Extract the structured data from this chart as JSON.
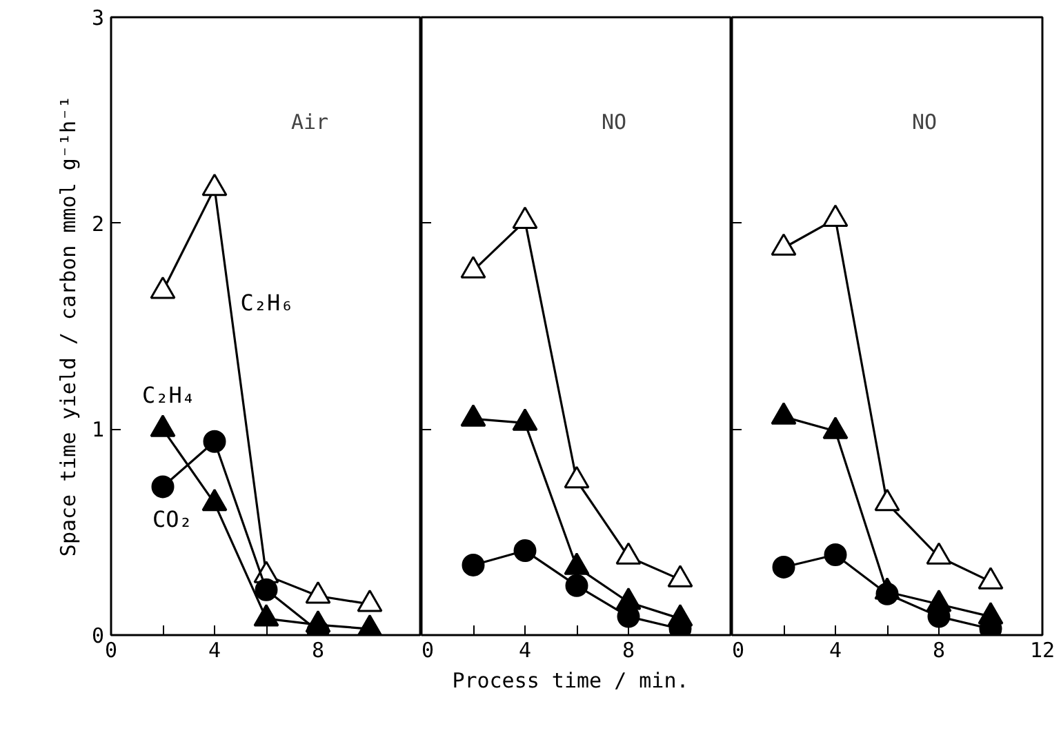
{
  "chart_data": [
    {
      "type": "line",
      "annotations": [
        "Air"
      ],
      "ylabel": "Space time yield / carbon mmol g⁻¹h⁻¹",
      "x": [
        2,
        4,
        6,
        8,
        10
      ],
      "xlim": [
        0,
        12
      ],
      "ylim": [
        0,
        3
      ],
      "xticks": [
        0,
        {
          "value": 2,
          "label": null
        },
        4,
        {
          "value": 6,
          "label": null
        },
        8,
        {
          "value": 10,
          "label": null
        }
      ],
      "yticks": [
        0,
        1,
        2,
        3
      ],
      "grid": false,
      "series": [
        {
          "name": "C₂H₆",
          "color": "#ffffff",
          "marker": "triangle",
          "values": [
            1.67,
            2.17,
            0.29,
            0.19,
            0.15
          ]
        },
        {
          "name": "C₂H₄",
          "color": "#000000",
          "marker": "triangle",
          "values": [
            1.0,
            0.64,
            0.08,
            0.05,
            0.03
          ]
        },
        {
          "name": "CO₂",
          "color": "#000000",
          "marker": "circle",
          "values": [
            0.72,
            0.94,
            0.22,
            0.02,
            null
          ]
        }
      ]
    },
    {
      "type": "line",
      "annotations": [
        "NO"
      ],
      "xlabel": "Process time  / min.",
      "x": [
        2,
        4,
        6,
        8,
        10
      ],
      "xlim": [
        0,
        12
      ],
      "ylim": [
        0,
        3
      ],
      "xticks": [
        0,
        {
          "value": 2,
          "label": null
        },
        4,
        {
          "value": 6,
          "label": null
        },
        8,
        {
          "value": 10,
          "label": null
        }
      ],
      "yticks": [
        0,
        1,
        2,
        3
      ],
      "tick_labels": "x",
      "grid": false,
      "series": [
        {
          "color": "#ffffff",
          "marker": "triangle",
          "values": [
            1.77,
            2.01,
            0.75,
            0.38,
            0.27
          ]
        },
        {
          "color": "#000000",
          "marker": "triangle",
          "values": [
            1.05,
            1.03,
            0.33,
            0.16,
            0.08
          ]
        },
        {
          "color": "#000000",
          "marker": "circle",
          "values": [
            0.34,
            0.41,
            0.24,
            0.09,
            0.03
          ]
        }
      ]
    },
    {
      "type": "line",
      "annotations": [
        "NO"
      ],
      "x": [
        2,
        4,
        6,
        8,
        10
      ],
      "xlim": [
        0,
        12
      ],
      "ylim": [
        0,
        3
      ],
      "xticks": [
        0,
        {
          "value": 2,
          "label": null
        },
        4,
        {
          "value": 6,
          "label": null
        },
        8,
        {
          "value": 10,
          "label": null
        },
        12
      ],
      "yticks": [
        0,
        1,
        2,
        3
      ],
      "tick_labels": "x",
      "grid": false,
      "series": [
        {
          "color": "#ffffff",
          "marker": "triangle",
          "values": [
            1.88,
            2.02,
            0.64,
            0.38,
            0.26
          ]
        },
        {
          "color": "#000000",
          "marker": "triangle",
          "values": [
            1.06,
            0.99,
            0.21,
            0.15,
            0.09
          ]
        },
        {
          "color": "#000000",
          "marker": "circle",
          "values": [
            0.33,
            0.39,
            0.2,
            0.09,
            0.03
          ]
        }
      ]
    }
  ]
}
